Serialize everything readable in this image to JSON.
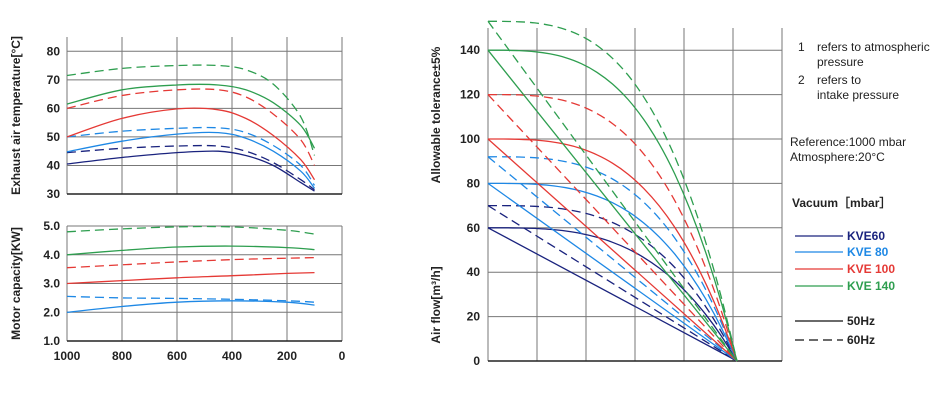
{
  "chart_data": [
    {
      "id": "temp",
      "type": "line",
      "ylabel": "Exhaust air temperature[°C]",
      "xlim": [
        1000,
        0
      ],
      "ylim": [
        30,
        85
      ],
      "x_ticks": [
        1000,
        800,
        600,
        400,
        200,
        0
      ],
      "y_ticks": [
        30,
        40,
        50,
        60,
        70,
        80
      ],
      "grid": true,
      "series": [
        {
          "model": "KVE60",
          "freq": "50Hz",
          "color": "#1a237e",
          "points": [
            [
              1000,
              40.5
            ],
            [
              800,
              42.8
            ],
            [
              600,
              44.5
            ],
            [
              450,
              45.0
            ],
            [
              350,
              43.5
            ],
            [
              250,
              40.0
            ],
            [
              150,
              34.0
            ],
            [
              100,
              31.0
            ]
          ]
        },
        {
          "model": "KVE60",
          "freq": "60Hz",
          "color": "#1a237e",
          "points": [
            [
              1000,
              44.5
            ],
            [
              800,
              46.0
            ],
            [
              600,
              46.8
            ],
            [
              450,
              46.8
            ],
            [
              350,
              45.0
            ],
            [
              250,
              41.0
            ],
            [
              150,
              35.0
            ],
            [
              100,
              31.5
            ]
          ]
        },
        {
          "model": "KVE 80",
          "freq": "50Hz",
          "color": "#1e88e5",
          "points": [
            [
              1000,
              44.8
            ],
            [
              800,
              48.5
            ],
            [
              600,
              51.0
            ],
            [
              450,
              51.5
            ],
            [
              350,
              49.5
            ],
            [
              250,
              45.0
            ],
            [
              150,
              38.0
            ],
            [
              100,
              32.0
            ]
          ]
        },
        {
          "model": "KVE 80",
          "freq": "60Hz",
          "color": "#1e88e5",
          "points": [
            [
              1000,
              50.0
            ],
            [
              800,
              52.0
            ],
            [
              600,
              53.0
            ],
            [
              450,
              53.2
            ],
            [
              350,
              51.5
            ],
            [
              250,
              47.0
            ],
            [
              150,
              40.0
            ],
            [
              100,
              33.0
            ]
          ]
        },
        {
          "model": "KVE 100",
          "freq": "50Hz",
          "color": "#e53935",
          "points": [
            [
              1000,
              50.0
            ],
            [
              800,
              56.5
            ],
            [
              600,
              59.8
            ],
            [
              450,
              59.5
            ],
            [
              350,
              56.5
            ],
            [
              250,
              50.5
            ],
            [
              150,
              42.0
            ],
            [
              100,
              35.0
            ]
          ]
        },
        {
          "model": "KVE 100",
          "freq": "60Hz",
          "color": "#e53935",
          "points": [
            [
              1000,
              60.0
            ],
            [
              800,
              64.5
            ],
            [
              600,
              66.5
            ],
            [
              450,
              66.5
            ],
            [
              350,
              64.0
            ],
            [
              250,
              58.0
            ],
            [
              150,
              49.0
            ],
            [
              100,
              40.0
            ]
          ]
        },
        {
          "model": "KVE 140",
          "freq": "50Hz",
          "color": "#2e9e4f",
          "points": [
            [
              1000,
              61.5
            ],
            [
              800,
              66.5
            ],
            [
              600,
              68.2
            ],
            [
              450,
              68.2
            ],
            [
              350,
              66.5
            ],
            [
              250,
              62.0
            ],
            [
              150,
              54.0
            ],
            [
              100,
              46.0
            ]
          ]
        },
        {
          "model": "KVE 140",
          "freq": "60Hz",
          "color": "#2e9e4f",
          "points": [
            [
              1000,
              71.5
            ],
            [
              800,
              74.0
            ],
            [
              600,
              75.0
            ],
            [
              450,
              75.0
            ],
            [
              350,
              73.5
            ],
            [
              250,
              68.5
            ],
            [
              150,
              57.0
            ],
            [
              100,
              43.5
            ]
          ]
        }
      ]
    },
    {
      "id": "power",
      "type": "line",
      "ylabel": "Motor capacity[KW]",
      "xlim": [
        1000,
        0
      ],
      "ylim": [
        1.0,
        5.0
      ],
      "x_ticks": [
        1000,
        800,
        600,
        400,
        200,
        0
      ],
      "y_ticks": [
        1.0,
        2.0,
        3.0,
        4.0,
        5.0
      ],
      "grid": true,
      "series": [
        {
          "model": "KVE 80",
          "freq": "50Hz",
          "color": "#1e88e5",
          "points": [
            [
              1000,
              2.0
            ],
            [
              800,
              2.2
            ],
            [
              600,
              2.35
            ],
            [
              400,
              2.4
            ],
            [
              200,
              2.35
            ],
            [
              100,
              2.25
            ]
          ]
        },
        {
          "model": "KVE 80",
          "freq": "60Hz",
          "color": "#1e88e5",
          "points": [
            [
              1000,
              2.55
            ],
            [
              800,
              2.5
            ],
            [
              600,
              2.48
            ],
            [
              400,
              2.45
            ],
            [
              200,
              2.4
            ],
            [
              100,
              2.35
            ]
          ]
        },
        {
          "model": "KVE 100",
          "freq": "50Hz",
          "color": "#e53935",
          "points": [
            [
              1000,
              3.0
            ],
            [
              800,
              3.1
            ],
            [
              600,
              3.2
            ],
            [
              400,
              3.27
            ],
            [
              200,
              3.35
            ],
            [
              100,
              3.38
            ]
          ]
        },
        {
          "model": "KVE 100",
          "freq": "60Hz",
          "color": "#e53935",
          "points": [
            [
              1000,
              3.55
            ],
            [
              800,
              3.65
            ],
            [
              600,
              3.75
            ],
            [
              400,
              3.83
            ],
            [
              200,
              3.88
            ],
            [
              100,
              3.9
            ]
          ]
        },
        {
          "model": "KVE 140",
          "freq": "50Hz",
          "color": "#2e9e4f",
          "points": [
            [
              1000,
              4.0
            ],
            [
              800,
              4.15
            ],
            [
              600,
              4.27
            ],
            [
              400,
              4.3
            ],
            [
              200,
              4.25
            ],
            [
              100,
              4.18
            ]
          ]
        },
        {
          "model": "KVE 140",
          "freq": "60Hz",
          "color": "#2e9e4f",
          "points": [
            [
              1000,
              4.8
            ],
            [
              800,
              4.9
            ],
            [
              600,
              4.97
            ],
            [
              400,
              4.97
            ],
            [
              200,
              4.85
            ],
            [
              100,
              4.72
            ]
          ]
        }
      ]
    },
    {
      "id": "airflow",
      "type": "line",
      "ylabel": "Air flow[m³/h]",
      "ylabel2": "Allowable tolerance±5%",
      "ylim": [
        0,
        150
      ],
      "y_ticks": [
        0,
        20,
        40,
        60,
        80,
        100,
        120,
        140
      ],
      "grid": true,
      "series": [
        {
          "model": "KVE60",
          "freq": "50Hz",
          "color": "#1a237e",
          "start": 60
        },
        {
          "model": "KVE60",
          "freq": "60Hz",
          "color": "#1a237e",
          "start": 70
        },
        {
          "model": "KVE 80",
          "freq": "50Hz",
          "color": "#1e88e5",
          "start": 80
        },
        {
          "model": "KVE 80",
          "freq": "60Hz",
          "color": "#1e88e5",
          "start": 92
        },
        {
          "model": "KVE 100",
          "freq": "50Hz",
          "color": "#e53935",
          "start": 100
        },
        {
          "model": "KVE 100",
          "freq": "60Hz",
          "color": "#e53935",
          "start": 120
        },
        {
          "model": "KVE 140",
          "freq": "50Hz",
          "color": "#2e9e4f",
          "start": 140
        },
        {
          "model": "KVE 140",
          "freq": "60Hz",
          "color": "#2e9e4f",
          "start": 153
        }
      ]
    }
  ],
  "notes": {
    "n1_num": "1",
    "n1_line1": "refers to atmospheric",
    "n1_line2": "pressure",
    "n2_num": "2",
    "n2_line1": "refers to",
    "n2_line2": "intake pressure",
    "reference": "Reference:1000 mbar",
    "atmosphere": "Atmosphere:20°C"
  },
  "legend": {
    "title": "Vacuum［mbar］",
    "items": [
      {
        "label": "KVE60",
        "color": "#1a237e"
      },
      {
        "label": "KVE 80",
        "color": "#1e88e5"
      },
      {
        "label": "KVE 100",
        "color": "#e53935"
      },
      {
        "label": "KVE 140",
        "color": "#2e9e4f"
      }
    ],
    "line_styles": [
      {
        "label": "50Hz",
        "style": "solid"
      },
      {
        "label": "60Hz",
        "style": "dashed"
      }
    ]
  }
}
